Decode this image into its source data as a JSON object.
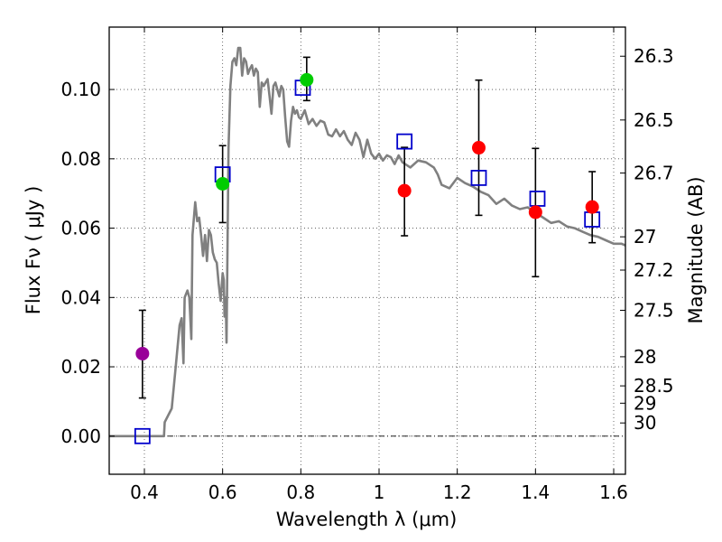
{
  "chart_data": {
    "type": "scatter",
    "xlabel": "Wavelength  λ (μm)",
    "ylabel": "Flux  Fν  ( μJy )",
    "y2label": "Magnitude (AB)",
    "xlim": [
      0.31,
      1.63
    ],
    "ylim": [
      -0.011,
      0.118
    ],
    "x_ticks": [
      0.4,
      0.6,
      0.8,
      1.0,
      1.2,
      1.4,
      1.6
    ],
    "x_tick_labels": [
      "0.4",
      "0.6",
      "0.8",
      "1",
      "1.2",
      "1.4",
      "1.6"
    ],
    "y_ticks": [
      0.0,
      0.02,
      0.04,
      0.06,
      0.08,
      0.1
    ],
    "y_tick_labels": [
      "0.00",
      "0.02",
      "0.04",
      "0.06",
      "0.08",
      "0.10"
    ],
    "mag_ticks": [
      {
        "label": "26.3",
        "flux": 0.1096
      },
      {
        "label": "26.5",
        "flux": 0.0912
      },
      {
        "label": "26.7",
        "flux": 0.0759
      },
      {
        "label": "27",
        "flux": 0.0575
      },
      {
        "label": "27.2",
        "flux": 0.0479
      },
      {
        "label": "27.5",
        "flux": 0.0363
      },
      {
        "label": "28",
        "flux": 0.0229
      },
      {
        "label": "28.5",
        "flux": 0.0145
      },
      {
        "label": "29",
        "flux": 0.0095
      },
      {
        "label": "30",
        "flux": 0.0038
      }
    ],
    "model_spectrum": {
      "name": "SED model",
      "color": "#808080",
      "x": [
        0.31,
        0.45,
        0.452,
        0.47,
        0.48,
        0.49,
        0.495,
        0.5,
        0.503,
        0.51,
        0.515,
        0.52,
        0.523,
        0.53,
        0.535,
        0.54,
        0.545,
        0.55,
        0.555,
        0.56,
        0.565,
        0.57,
        0.575,
        0.58,
        0.585,
        0.59,
        0.595,
        0.6,
        0.603,
        0.605,
        0.608,
        0.61,
        0.615,
        0.62,
        0.625,
        0.63,
        0.635,
        0.64,
        0.645,
        0.65,
        0.655,
        0.66,
        0.665,
        0.67,
        0.675,
        0.68,
        0.685,
        0.69,
        0.695,
        0.7,
        0.705,
        0.71,
        0.715,
        0.72,
        0.725,
        0.73,
        0.735,
        0.74,
        0.745,
        0.75,
        0.755,
        0.76,
        0.765,
        0.77,
        0.775,
        0.78,
        0.785,
        0.79,
        0.795,
        0.8,
        0.81,
        0.82,
        0.83,
        0.84,
        0.85,
        0.86,
        0.87,
        0.88,
        0.89,
        0.9,
        0.91,
        0.92,
        0.93,
        0.94,
        0.95,
        0.96,
        0.97,
        0.98,
        0.99,
        1.0,
        1.01,
        1.02,
        1.03,
        1.04,
        1.05,
        1.06,
        1.08,
        1.1,
        1.12,
        1.14,
        1.15,
        1.16,
        1.18,
        1.2,
        1.22,
        1.24,
        1.26,
        1.28,
        1.3,
        1.32,
        1.34,
        1.36,
        1.38,
        1.4,
        1.42,
        1.44,
        1.46,
        1.48,
        1.5,
        1.52,
        1.54,
        1.56,
        1.58,
        1.6,
        1.62,
        1.63
      ],
      "y": [
        0.0,
        0.0,
        0.004,
        0.008,
        0.02,
        0.032,
        0.034,
        0.021,
        0.04,
        0.042,
        0.04,
        0.028,
        0.058,
        0.0675,
        0.062,
        0.063,
        0.058,
        0.052,
        0.058,
        0.0505,
        0.0595,
        0.058,
        0.053,
        0.051,
        0.05,
        0.044,
        0.039,
        0.047,
        0.045,
        0.0345,
        0.04,
        0.027,
        0.083,
        0.101,
        0.108,
        0.109,
        0.107,
        0.112,
        0.112,
        0.104,
        0.109,
        0.108,
        0.1045,
        0.106,
        0.107,
        0.104,
        0.106,
        0.105,
        0.095,
        0.102,
        0.101,
        0.102,
        0.103,
        0.098,
        0.093,
        0.101,
        0.102,
        0.1,
        0.098,
        0.101,
        0.1,
        0.092,
        0.085,
        0.0835,
        0.091,
        0.095,
        0.093,
        0.094,
        0.092,
        0.0915,
        0.094,
        0.09,
        0.0915,
        0.0895,
        0.091,
        0.0905,
        0.087,
        0.0865,
        0.0885,
        0.0865,
        0.088,
        0.0855,
        0.084,
        0.0875,
        0.0855,
        0.0805,
        0.0855,
        0.0815,
        0.08,
        0.0815,
        0.0795,
        0.081,
        0.0805,
        0.0785,
        0.081,
        0.079,
        0.0775,
        0.0795,
        0.079,
        0.0775,
        0.0755,
        0.0725,
        0.0715,
        0.0745,
        0.073,
        0.072,
        0.0705,
        0.0695,
        0.067,
        0.0685,
        0.0665,
        0.0655,
        0.066,
        0.0645,
        0.063,
        0.0615,
        0.062,
        0.0605,
        0.06,
        0.059,
        0.058,
        0.0575,
        0.0565,
        0.0555,
        0.0555,
        0.055
      ]
    },
    "model_photometry": {
      "marker": "open-square",
      "color": "#0000cc",
      "x": [
        0.395,
        0.6,
        0.805,
        1.065,
        1.255,
        1.405,
        1.545
      ],
      "y": [
        0.0,
        0.0755,
        0.1005,
        0.085,
        0.0745,
        0.0685,
        0.0625
      ]
    },
    "observed_points": [
      {
        "x": 0.395,
        "y": 0.0238,
        "yerr_low": 0.0128,
        "yerr_high": 0.0125,
        "color": "#990099"
      },
      {
        "x": 0.6,
        "y": 0.0728,
        "yerr_low": 0.0112,
        "yerr_high": 0.011,
        "color": "#00cc00"
      },
      {
        "x": 0.815,
        "y": 0.1028,
        "yerr_low": 0.006,
        "yerr_high": 0.0065,
        "color": "#00cc00"
      },
      {
        "x": 1.065,
        "y": 0.0708,
        "yerr_low": 0.013,
        "yerr_high": 0.0125,
        "color": "#ff0000"
      },
      {
        "x": 1.255,
        "y": 0.0832,
        "yerr_low": 0.0195,
        "yerr_high": 0.0195,
        "color": "#ff0000"
      },
      {
        "x": 1.4,
        "y": 0.0646,
        "yerr_low": 0.0186,
        "yerr_high": 0.0184,
        "color": "#ff0000"
      },
      {
        "x": 1.545,
        "y": 0.0661,
        "yerr_low": 0.0103,
        "yerr_high": 0.0102,
        "color": "#ff0000"
      }
    ],
    "zero_line": {
      "y": 0.0,
      "style": "dashdot"
    },
    "grid": true
  }
}
